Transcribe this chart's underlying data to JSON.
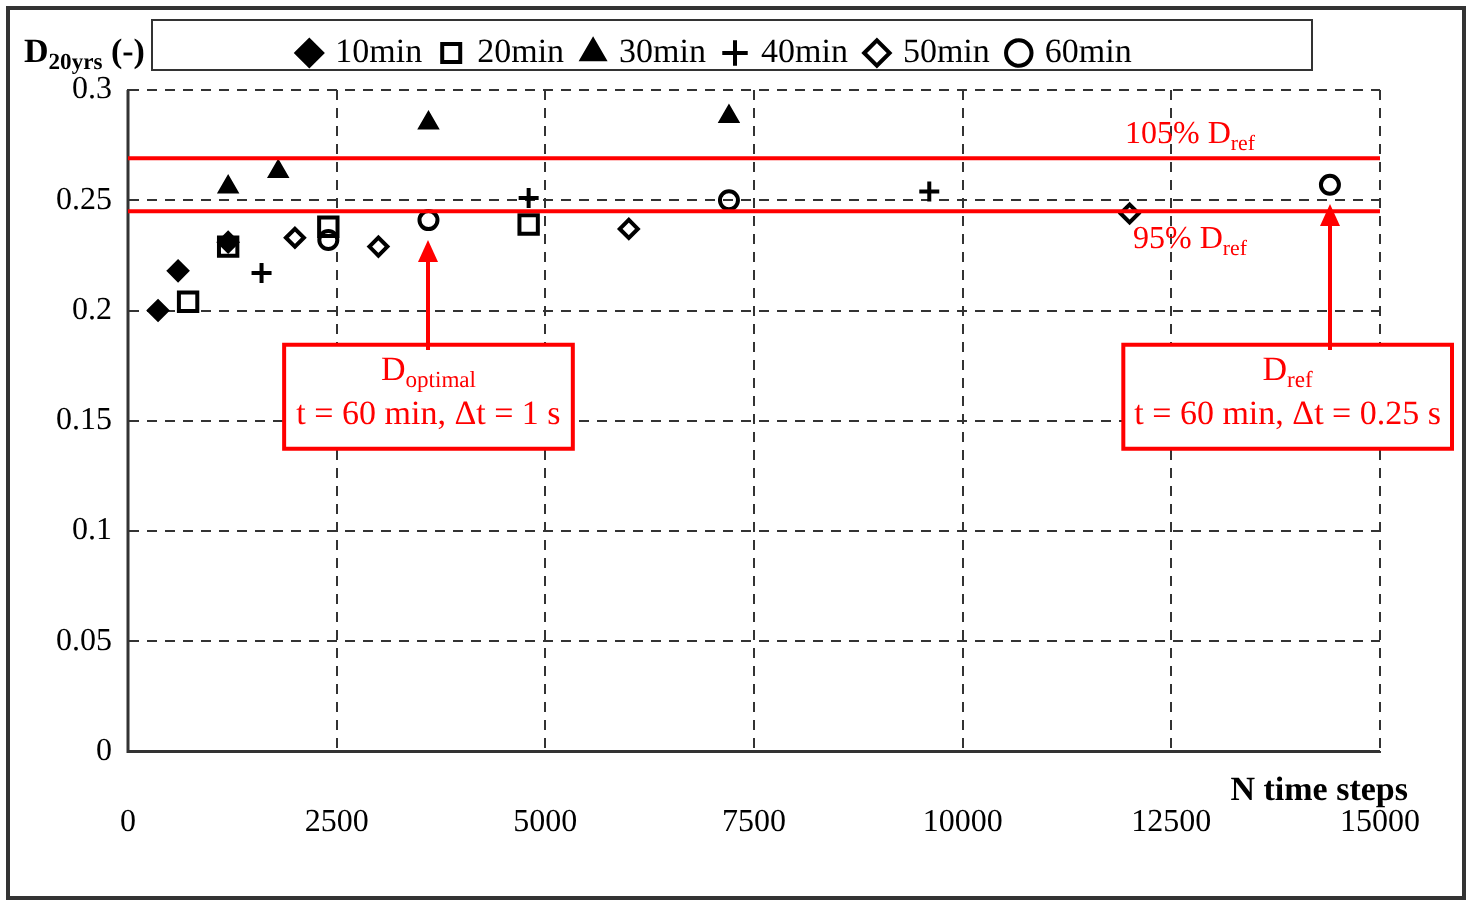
{
  "chart_data": {
    "type": "scatter",
    "ylabel": "D$_{20yrs}$ (-)",
    "xlabel": "N time steps",
    "xlim": [
      0,
      15000
    ],
    "xticks": [
      0,
      2500,
      5000,
      7500,
      10000,
      12500,
      15000
    ],
    "ylim": [
      0,
      0.3
    ],
    "yticks": [
      0,
      0.05,
      0.1,
      0.15,
      0.2,
      0.25,
      0.3
    ],
    "grid": true,
    "legend": "top",
    "series": [
      {
        "name": "10min",
        "color": "#000000",
        "marker": "diamond",
        "x": [
          360,
          600,
          1200
        ],
        "values": [
          0.2,
          0.218,
          0.231
        ]
      },
      {
        "name": "20min",
        "color": "#000000",
        "marker": "square",
        "x": [
          720,
          1200,
          2400,
          4800
        ],
        "values": [
          0.204,
          0.229,
          0.238,
          0.239
        ]
      },
      {
        "name": "30min",
        "color": "#000000",
        "marker": "triangle",
        "x": [
          1200,
          1800,
          3600,
          7200
        ],
        "values": [
          0.256,
          0.263,
          0.285,
          0.288
        ]
      },
      {
        "name": "40min",
        "color": "#000000",
        "marker": "cross",
        "x": [
          1600,
          4800,
          9600
        ],
        "values": [
          0.217,
          0.251,
          0.254
        ]
      },
      {
        "name": "50min",
        "color": "#000000",
        "marker": "diamond",
        "x": [
          2000,
          3000,
          6000,
          12000
        ],
        "values": [
          0.233,
          0.229,
          0.237,
          0.244
        ]
      },
      {
        "name": "60min",
        "color": "#000000",
        "marker": "circle",
        "x": [
          2400,
          3600,
          7200,
          14400
        ],
        "values": [
          0.232,
          0.241,
          0.25,
          0.257
        ]
      }
    ],
    "ref_lines": [
      {
        "axis": "y",
        "value": 0.269,
        "label": "105% D$_{ref}$",
        "color": "#ff0000"
      },
      {
        "axis": "y",
        "value": 0.245,
        "label": "95% D$_{ref}$",
        "color": "#ff0000"
      }
    ],
    "annotations": [
      "D$_{optimal}$\nt = 60 min, Δt = 1 s",
      "D$_{ref}$\nt = 60 min, Δt = 0.25 s"
    ]
  }
}
